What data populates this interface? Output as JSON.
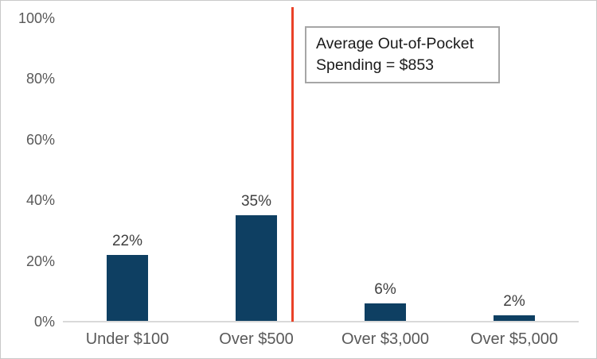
{
  "chart_data": {
    "type": "bar",
    "categories": [
      "Under $100",
      "Over $500",
      "Over $3,000",
      "Over $5,000"
    ],
    "values": [
      22,
      35,
      6,
      2
    ],
    "value_labels": [
      "22%",
      "35%",
      "6%",
      "2%"
    ],
    "y_ticks": [
      {
        "label": "100%",
        "value": 100
      },
      {
        "label": "80%",
        "value": 80
      },
      {
        "label": "60%",
        "value": 60
      },
      {
        "label": "40%",
        "value": 40
      },
      {
        "label": "20%",
        "value": 20
      },
      {
        "label": "0%",
        "value": 0
      }
    ],
    "ylim": [
      0,
      100
    ],
    "grid": false,
    "legend": "none",
    "annotation": {
      "text": "Average Out-of-Pocket Spending = $853",
      "marker": "vertical-line-between-Over $500-and-Over $3,000"
    },
    "colors": {
      "bar": "#0e3f62",
      "average_line": "#ea4228",
      "axis_line": "#d9d9d9",
      "tick_label": "#595959",
      "value_label": "#3f3f3f",
      "annotation_border": "#a6a6a6",
      "annotation_text": "#1a1a1a",
      "frame_border": "#c9c9c9",
      "background": "#ffffff"
    }
  }
}
